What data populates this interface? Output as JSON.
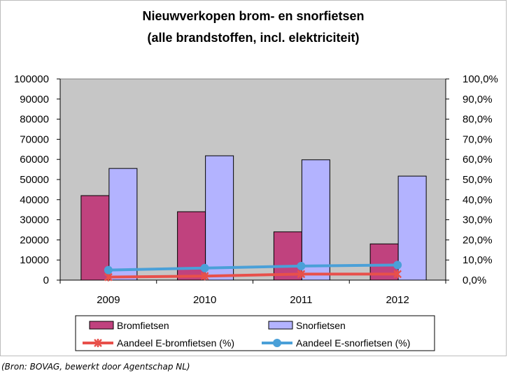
{
  "chart_data": {
    "type": "bar",
    "title": "Nieuwverkopen brom- en snorfietsen",
    "subtitle": "(alle brandstoffen, incl. elektriciteit)",
    "categories": [
      "2009",
      "2010",
      "2011",
      "2012"
    ],
    "ylim": [
      0,
      100000
    ],
    "y_ticks": [
      "0",
      "10000",
      "20000",
      "30000",
      "40000",
      "50000",
      "60000",
      "70000",
      "80000",
      "90000",
      "100000"
    ],
    "y2lim": [
      0,
      100
    ],
    "y2_ticks": [
      "0,0%",
      "10,0%",
      "20,0%",
      "30,0%",
      "40,0%",
      "50,0%",
      "60,0%",
      "70,0%",
      "80,0%",
      "90,0%",
      "100,0%"
    ],
    "grid": false,
    "legend_position": "bottom",
    "series": [
      {
        "name": "Bromfietsen",
        "type": "bar",
        "axis": "left",
        "color": "#c0427e",
        "values": [
          42000,
          34000,
          24000,
          18000
        ]
      },
      {
        "name": "Snorfietsen",
        "type": "bar",
        "axis": "left",
        "color": "#b3b3ff",
        "values": [
          55500,
          61800,
          59800,
          51700
        ]
      },
      {
        "name": "Aandeel E-bromfietsen (%)",
        "type": "line",
        "axis": "right",
        "marker": "star",
        "color": "#e8504a",
        "values": [
          1.5,
          2.0,
          3.0,
          3.0
        ]
      },
      {
        "name": "Aandeel E-snorfietsen (%)",
        "type": "line",
        "axis": "right",
        "marker": "circle",
        "color": "#4aa0d8",
        "values": [
          5.0,
          6.0,
          7.0,
          7.5
        ]
      }
    ],
    "colors": {
      "plot_background": "#c6c6c6"
    }
  },
  "source": "(Bron: BOVAG, bewerkt door Agentschap NL)"
}
